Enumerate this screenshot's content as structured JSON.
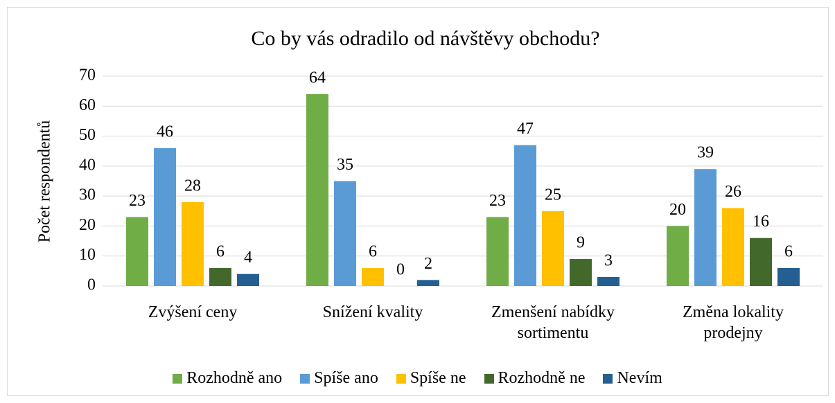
{
  "chart_data": {
    "type": "bar",
    "title": "Co by vás odradilo od návštěvy obchodu?",
    "y_label": "Počet respondentů",
    "categories": [
      "Zvýšení ceny",
      "Snížení kvality",
      "Zmenšení nabídky sortimentu",
      "Změna lokality prodejny"
    ],
    "series": [
      {
        "name": "Rozhodně ano",
        "color": "#70ad47",
        "values": [
          23,
          64,
          23,
          20
        ]
      },
      {
        "name": "Spíše ano",
        "color": "#5b9bd5",
        "values": [
          46,
          35,
          47,
          39
        ]
      },
      {
        "name": "Spíše ne",
        "color": "#ffc000",
        "values": [
          28,
          6,
          25,
          26
        ]
      },
      {
        "name": "Rozhodně ne",
        "color": "#43682b",
        "values": [
          6,
          0,
          9,
          16
        ]
      },
      {
        "name": "Nevím",
        "color": "#255e91",
        "values": [
          4,
          2,
          3,
          6
        ]
      }
    ],
    "ylim": [
      0,
      70
    ],
    "yticks": [
      0,
      10,
      20,
      30,
      40,
      50,
      60,
      70
    ],
    "grid": true,
    "legend": "bottom"
  }
}
